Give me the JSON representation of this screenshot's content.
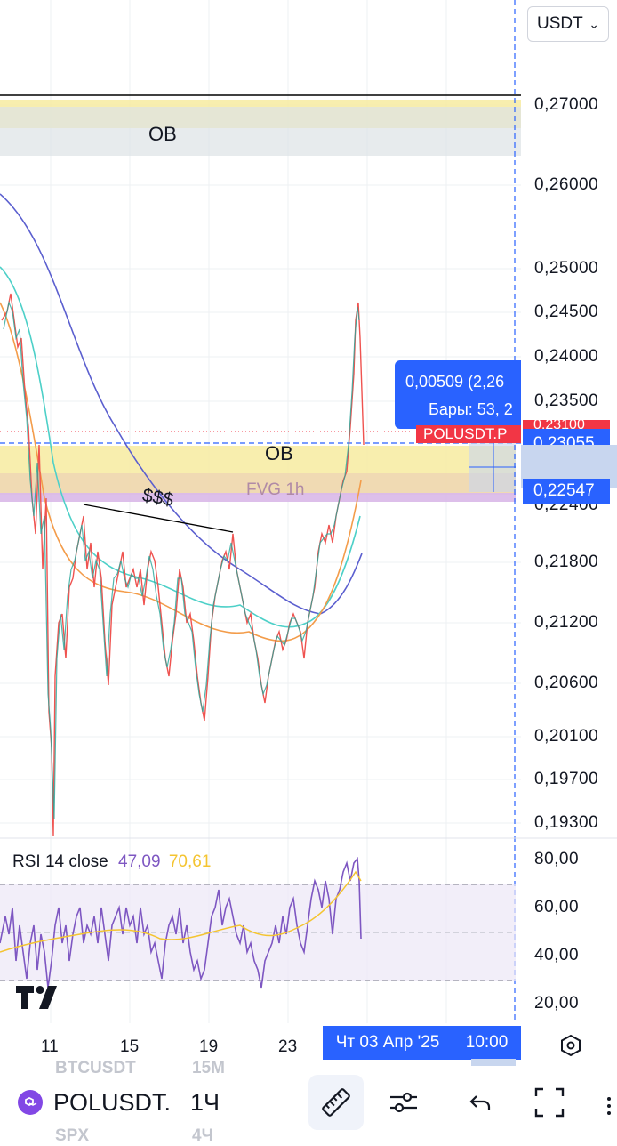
{
  "currency_selector": {
    "value": "USDT",
    "icon": "chevron-down-icon"
  },
  "price_axis": [
    "0,27000",
    "0,26000",
    "0,25000",
    "0,24500",
    "0,24000",
    "0,23500",
    "0,22400",
    "0,21800",
    "0,21200",
    "0,20600",
    "0,20100",
    "0,19700",
    "0,19300"
  ],
  "price_tags": {
    "current_price": "0,23055",
    "crosshair_price": "0,22547",
    "symbol_tag": "POLUSDT.P",
    "hidden_price": "0,23100"
  },
  "measure_tooltip": {
    "line1": "0,00509 (2,26",
    "line2": "Бары: 53, 2"
  },
  "annotations": {
    "ob_top": "OB",
    "ob_mid": "OB",
    "fvg": "FVG 1h",
    "liquidity": "$$$"
  },
  "rsi": {
    "name": "RSI 14 close",
    "value1": "47,09",
    "value2": "70,61",
    "axis": [
      "80,00",
      "60,00",
      "40,00",
      "20,00"
    ]
  },
  "time_axis": {
    "labels": [
      "11",
      "15",
      "19",
      "23"
    ],
    "crosshair_date": "Чт 03 Апр '25",
    "crosshair_time": "10:00"
  },
  "bottom_bar": {
    "symbol": "POLUSDT.",
    "interval": "1Ч",
    "ghost_top_symbol": "BTCUSDT",
    "ghost_top_interval": "15М",
    "ghost_bottom_symbol": "SPX",
    "ghost_bottom_interval": "4Ч"
  },
  "colors": {
    "accent": "#2962ff",
    "ob_zone": "#f7eba0",
    "ob_gray": "#e4e7ea",
    "fvg": "#d9b8e8",
    "rsi_line": "#7e57c2",
    "rsi_ma": "#f4c430",
    "candle_up": "#26a69a",
    "candle_down": "#ef5350",
    "red_tag": "#f23645"
  }
}
